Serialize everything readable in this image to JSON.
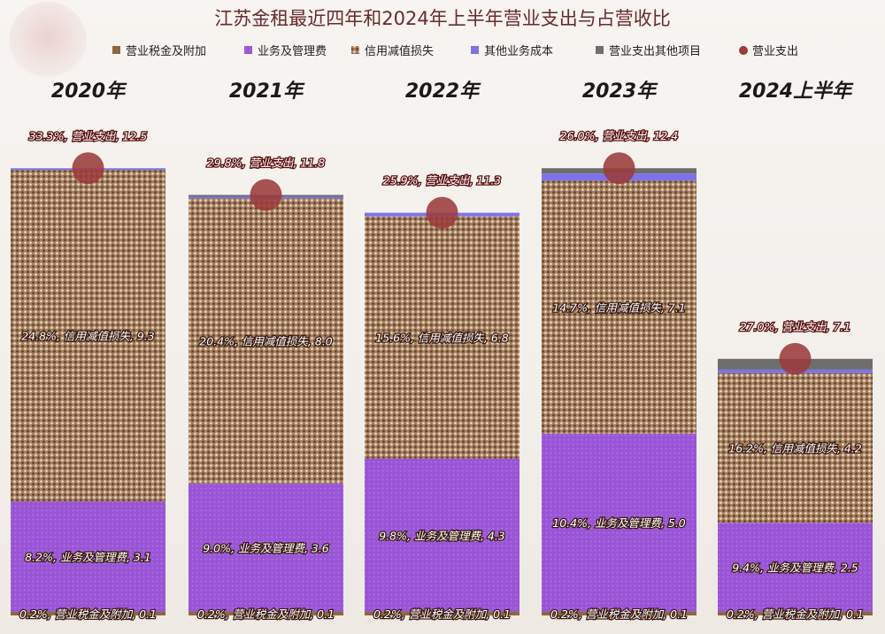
{
  "chart_data": {
    "type": "bar",
    "title": "江苏金租最近四年和2024年上半年营业支出与占营收比",
    "categories": [
      "2020年",
      "2021年",
      "2022年",
      "2023年",
      "2024上半年"
    ],
    "legend_position": "top",
    "grid": false,
    "colors": {
      "营业税金及附加": "#8a6a3a",
      "业务及管理费": "#9b59d6",
      "信用减值损失": "#a98567",
      "其他业务成本": "#7f72e6",
      "营业支出其他项目": "#707070",
      "营业支出": "#9b3b3b"
    },
    "legend": [
      {
        "name": "营业税金及附加",
        "color": "#8a6a3a"
      },
      {
        "name": "业务及管理费",
        "color": "#9b59d6"
      },
      {
        "name": "信用减值损失",
        "color": "#a98567"
      },
      {
        "name": "其他业务成本",
        "color": "#7f72e6"
      },
      {
        "name": "营业支出其他项目",
        "color": "#707070"
      },
      {
        "name": "营业支出",
        "color": "#9b3b3b"
      }
    ],
    "series": [
      {
        "name": "营业税金及附加",
        "values": [
          0.1,
          0.1,
          0.1,
          0.1,
          0.1
        ],
        "pct": [
          "0.2%",
          "0.2%",
          "0.2%",
          "0.2%",
          "0.2%"
        ],
        "labels_shown": [
          true,
          true,
          true,
          true,
          true
        ]
      },
      {
        "name": "业务及管理费",
        "values": [
          3.1,
          3.6,
          4.3,
          5.0,
          2.5
        ],
        "pct": [
          "8.2%",
          "9.0%",
          "9.8%",
          "10.4%",
          "9.4%"
        ],
        "labels_shown": [
          true,
          true,
          true,
          true,
          true
        ]
      },
      {
        "name": "信用减值损失",
        "values": [
          9.3,
          8.0,
          6.8,
          7.1,
          4.2
        ],
        "pct": [
          "24.8%",
          "20.4%",
          "15.6%",
          "14.7%",
          "16.2%"
        ],
        "labels_shown": [
          true,
          true,
          true,
          true,
          true
        ]
      },
      {
        "name": "其他业务成本",
        "values": [
          0.03,
          0.05,
          0.1,
          0.2,
          0.1
        ],
        "labels_shown": [
          false,
          false,
          false,
          false,
          false
        ]
      },
      {
        "name": "营业支出其他项目",
        "values": [
          0.0,
          0.05,
          0.0,
          0.15,
          0.3
        ],
        "labels_shown": [
          false,
          false,
          false,
          false,
          false
        ]
      }
    ],
    "totals": {
      "name": "营业支出",
      "values": [
        12.5,
        11.8,
        11.3,
        12.4,
        7.1
      ],
      "pct": [
        "33.3%",
        "29.8%",
        "25.9%",
        "26.0%",
        "27.0%"
      ]
    }
  }
}
